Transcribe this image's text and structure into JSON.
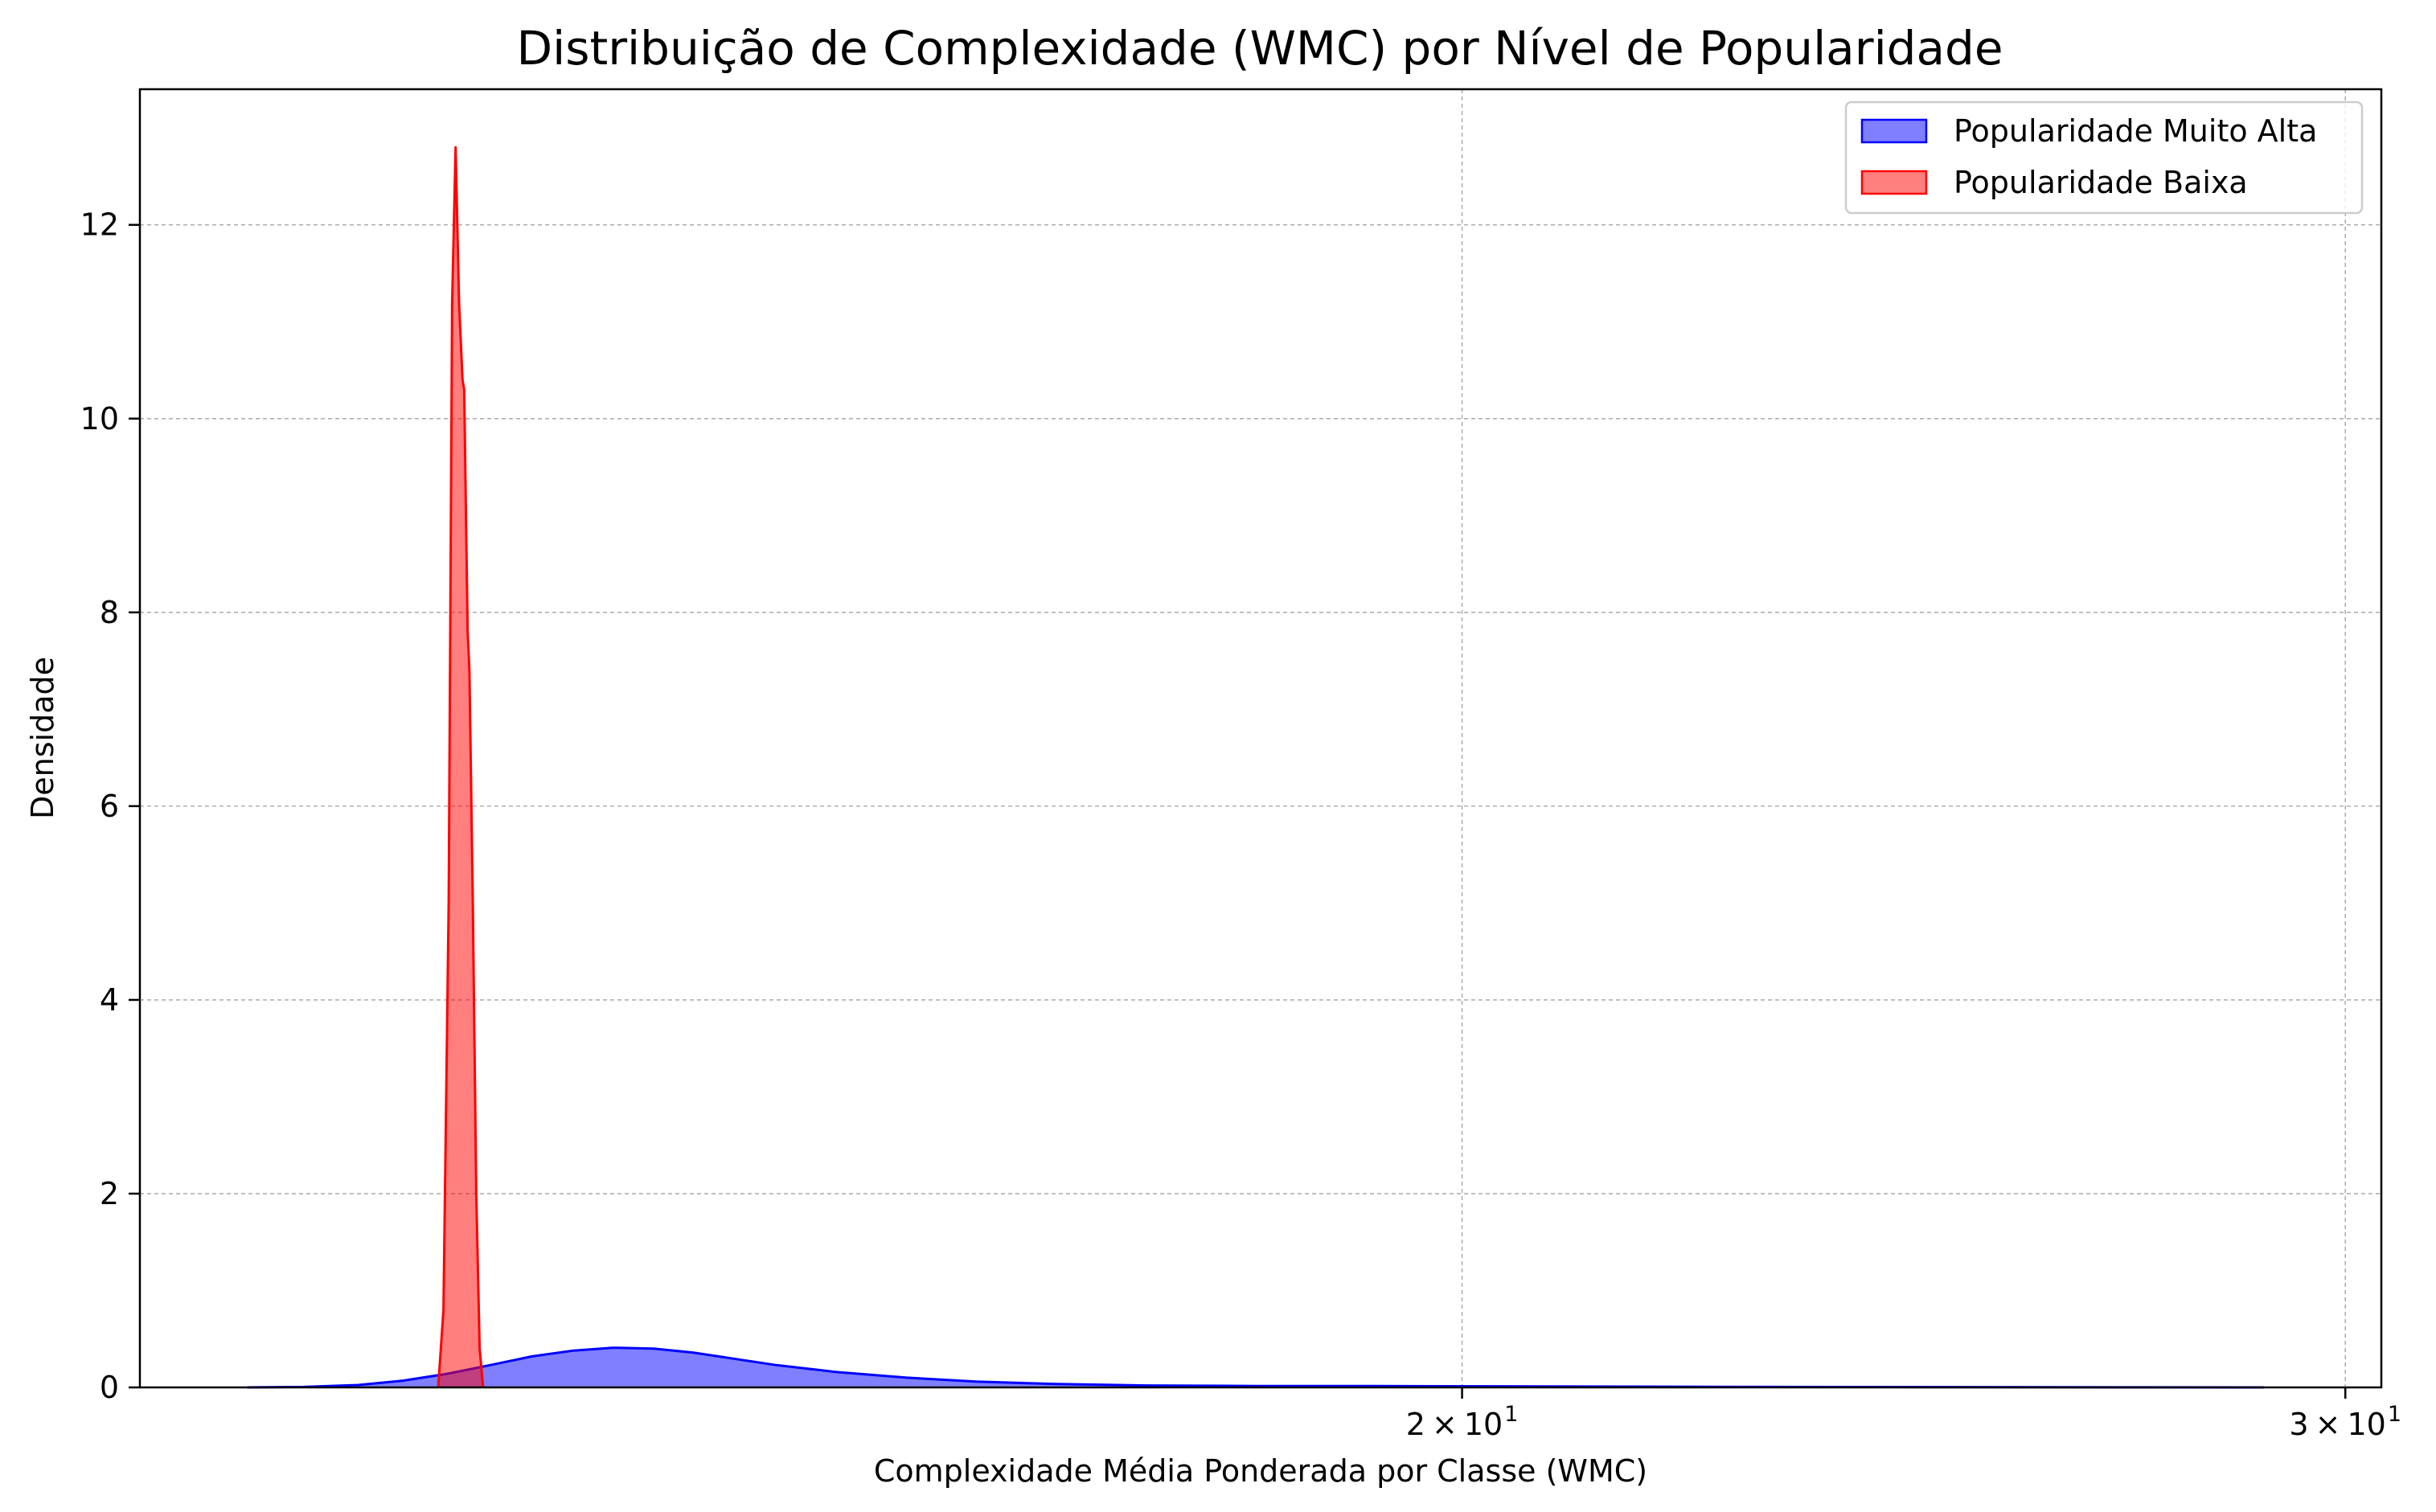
{
  "chart_data": {
    "type": "area",
    "title": "Distribuição de Complexidade (WMC) por Nível de Popularidade",
    "xlabel": "Complexidade Média Ponderada por Classe (WMC)",
    "ylabel": "Densidade",
    "x_scale": "log",
    "xlim": [
      10.9,
      30.5
    ],
    "ylim": [
      0,
      13.4
    ],
    "grid": true,
    "legend_position": "top-right",
    "x_ticks": [
      {
        "value": 20,
        "base": "2",
        "mult": "×",
        "exp_base": "10",
        "exp": "1"
      },
      {
        "value": 30,
        "base": "3",
        "mult": "×",
        "exp_base": "10",
        "exp": "1"
      }
    ],
    "y_ticks": [
      {
        "value": 0,
        "label": "0"
      },
      {
        "value": 2,
        "label": "2"
      },
      {
        "value": 4,
        "label": "4"
      },
      {
        "value": 6,
        "label": "6"
      },
      {
        "value": 8,
        "label": "8"
      },
      {
        "value": 10,
        "label": "10"
      },
      {
        "value": 12,
        "label": "12"
      }
    ],
    "series": [
      {
        "name": "Popularidade Muito Alta",
        "color": "#0000ff",
        "fill": "#0000ff",
        "fill_opacity": 0.5,
        "points": [
          [
            11.45,
            0.0
          ],
          [
            11.75,
            0.005
          ],
          [
            12.05,
            0.025
          ],
          [
            12.3,
            0.07
          ],
          [
            12.55,
            0.14
          ],
          [
            12.8,
            0.23
          ],
          [
            13.05,
            0.32
          ],
          [
            13.3,
            0.38
          ],
          [
            13.55,
            0.41
          ],
          [
            13.8,
            0.4
          ],
          [
            14.05,
            0.36
          ],
          [
            14.3,
            0.3
          ],
          [
            14.6,
            0.23
          ],
          [
            15.0,
            0.16
          ],
          [
            15.5,
            0.1
          ],
          [
            16.0,
            0.06
          ],
          [
            16.6,
            0.035
          ],
          [
            17.3,
            0.02
          ],
          [
            18.2,
            0.015
          ],
          [
            19.2,
            0.014
          ],
          [
            20.3,
            0.012
          ],
          [
            21.5,
            0.008
          ],
          [
            23.0,
            0.005
          ],
          [
            25.0,
            0.003
          ],
          [
            27.0,
            0.001
          ],
          [
            28.9,
            0.0
          ]
        ]
      },
      {
        "name": "Popularidade Baixa",
        "color": "#ff0000",
        "fill": "#ff0000",
        "fill_opacity": 0.5,
        "points": [
          [
            12.5,
            0.0
          ],
          [
            12.53,
            0.8
          ],
          [
            12.56,
            5.0
          ],
          [
            12.58,
            11.2
          ],
          [
            12.6,
            12.8
          ],
          [
            12.62,
            11.2
          ],
          [
            12.64,
            10.4
          ],
          [
            12.65,
            10.3
          ],
          [
            12.66,
            9.0
          ],
          [
            12.67,
            7.8
          ],
          [
            12.68,
            7.4
          ],
          [
            12.7,
            5.0
          ],
          [
            12.72,
            2.0
          ],
          [
            12.74,
            0.4
          ],
          [
            12.76,
            0.0
          ]
        ]
      }
    ]
  }
}
